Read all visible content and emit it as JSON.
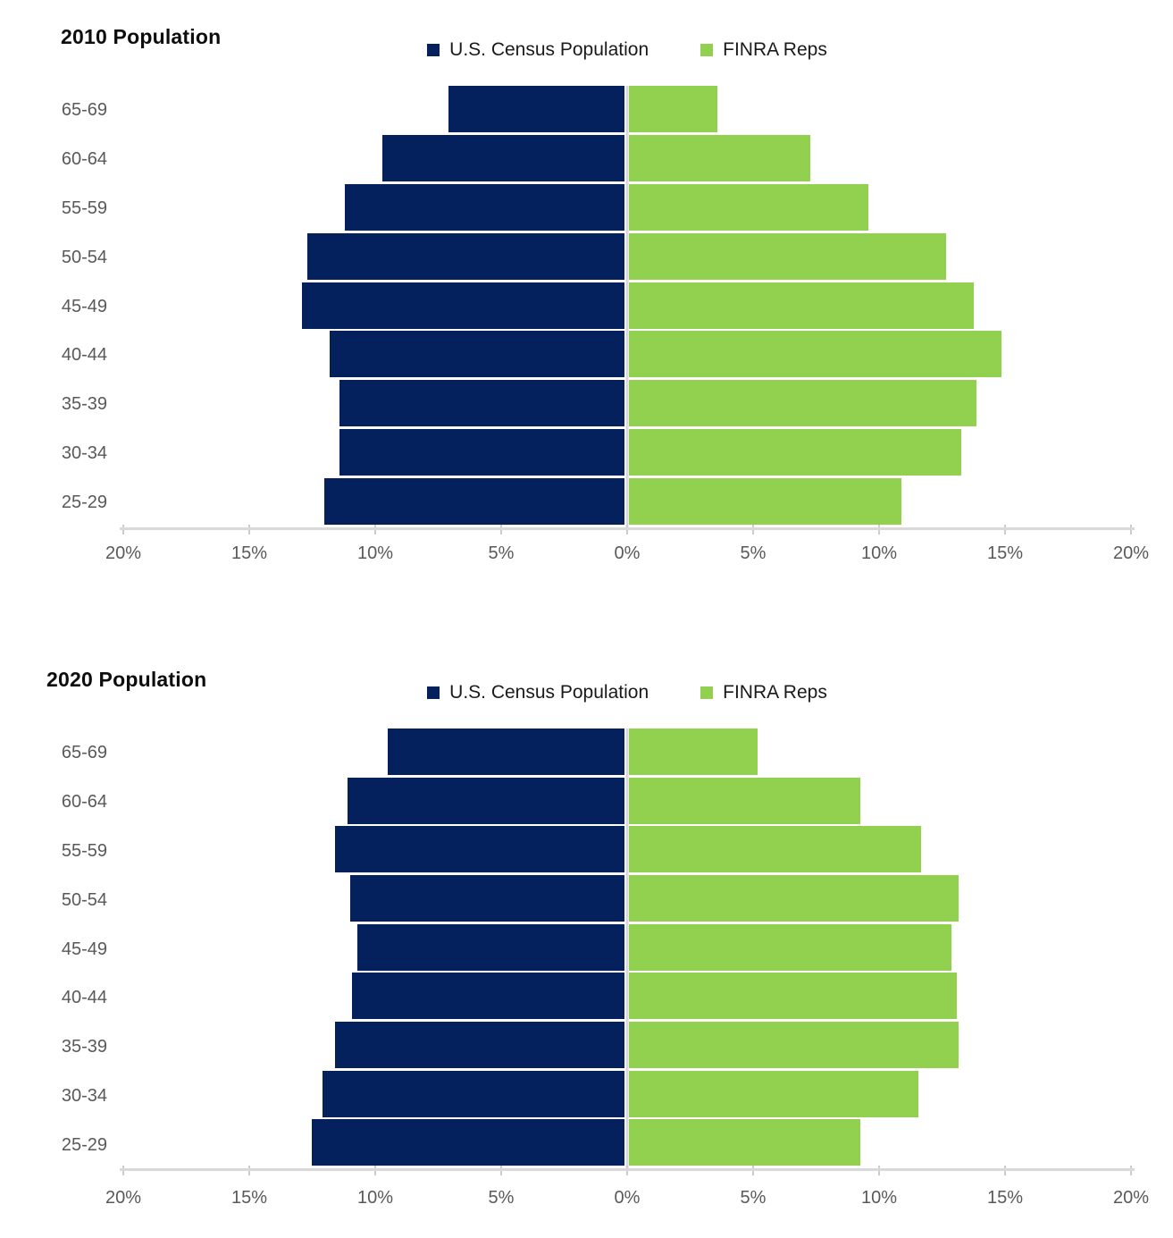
{
  "page": {
    "background": "#ffffff"
  },
  "colors": {
    "census_bar": "#04215E",
    "finra_bar": "#92D050",
    "axis_line": "#D9D9D9",
    "tick_mark": "#CCCCCC",
    "axis_label_text": "#595959",
    "category_label_text": "#595959",
    "legend_text": "#1A1A1A",
    "title_text": "#0D0D0D"
  },
  "chart_data": [
    {
      "type": "bar",
      "variant": "population_pyramid",
      "title": "2010 Population",
      "categories": [
        "65-69",
        "60-64",
        "55-59",
        "50-54",
        "45-49",
        "40-44",
        "35-39",
        "30-34",
        "25-29"
      ],
      "series": [
        {
          "name": "U.S. Census Population",
          "side": "left",
          "color": "#04215E",
          "values": [
            7.0,
            9.6,
            11.1,
            12.6,
            12.8,
            11.7,
            11.3,
            11.3,
            11.9
          ]
        },
        {
          "name": "FINRA Reps",
          "side": "right",
          "color": "#92D050",
          "values": [
            3.5,
            7.2,
            9.5,
            12.6,
            13.7,
            14.8,
            13.8,
            13.2,
            10.8
          ]
        }
      ],
      "x_ticks": [
        "20%",
        "15%",
        "10%",
        "5%",
        "0%",
        "5%",
        "10%",
        "15%",
        "20%"
      ],
      "x_max_each_side": 20,
      "unit": "percent",
      "grid": false,
      "legend_position": "top-center"
    },
    {
      "type": "bar",
      "variant": "population_pyramid",
      "title": "2020 Population",
      "categories": [
        "65-69",
        "60-64",
        "55-59",
        "50-54",
        "45-49",
        "40-44",
        "35-39",
        "30-34",
        "25-29"
      ],
      "series": [
        {
          "name": "U.S. Census Population",
          "side": "left",
          "color": "#04215E",
          "values": [
            9.4,
            11.0,
            11.5,
            10.9,
            10.6,
            10.8,
            11.5,
            12.0,
            12.4
          ]
        },
        {
          "name": "FINRA Reps",
          "side": "right",
          "color": "#92D050",
          "values": [
            5.1,
            9.2,
            11.6,
            13.1,
            12.8,
            13.0,
            13.1,
            11.5,
            9.2
          ]
        }
      ],
      "x_ticks": [
        "20%",
        "15%",
        "10%",
        "5%",
        "0%",
        "5%",
        "10%",
        "15%",
        "20%"
      ],
      "x_max_each_side": 20,
      "unit": "percent",
      "grid": false,
      "legend_position": "top-center"
    }
  ]
}
